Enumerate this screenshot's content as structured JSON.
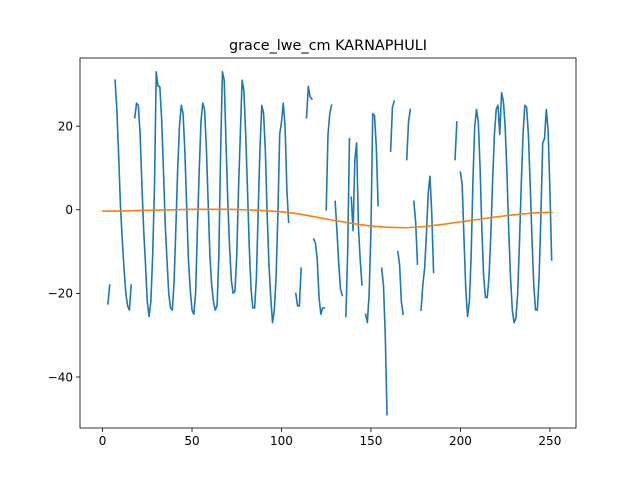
{
  "chart_data": {
    "type": "line",
    "title": "grace_lwe_cm KARNAPHULI",
    "xlabel": "",
    "ylabel": "",
    "xlim": [
      -12.6,
      264.6
    ],
    "ylim": [
      -52.2,
      36.3
    ],
    "xticks": [
      0,
      50,
      100,
      150,
      200,
      250
    ],
    "yticks": [
      -40,
      -20,
      0,
      20
    ],
    "grid": false,
    "legend": "none",
    "series": [
      {
        "color": "#1f77b4",
        "segments": [
          [
            [
              3,
              -22.5
            ],
            [
              4,
              -18
            ]
          ],
          [
            [
              7,
              31
            ],
            [
              8,
              24
            ],
            [
              9,
              13
            ],
            [
              10,
              1
            ],
            [
              11,
              -7
            ],
            [
              12,
              -14
            ],
            [
              13,
              -20
            ],
            [
              14,
              -23
            ],
            [
              15,
              -24
            ],
            [
              16,
              -18
            ]
          ],
          [
            [
              18,
              22
            ],
            [
              19,
              25.5
            ],
            [
              20,
              25
            ],
            [
              21,
              18
            ],
            [
              22,
              6
            ],
            [
              23,
              -5
            ],
            [
              24,
              -13
            ],
            [
              25,
              -22
            ],
            [
              26,
              -25.5
            ],
            [
              27,
              -22
            ],
            [
              28,
              -11
            ],
            [
              29,
              5
            ],
            [
              30,
              33
            ],
            [
              31,
              29.5
            ],
            [
              32,
              29.5
            ],
            [
              33,
              22
            ],
            [
              34,
              10
            ],
            [
              35,
              -3
            ],
            [
              36,
              -12
            ],
            [
              37,
              -20
            ],
            [
              38,
              -23.5
            ],
            [
              39,
              -24
            ],
            [
              40,
              -17
            ],
            [
              41,
              -4
            ],
            [
              42,
              10
            ],
            [
              43,
              20
            ],
            [
              44,
              25
            ],
            [
              45,
              23
            ],
            [
              46,
              14
            ],
            [
              47,
              1
            ],
            [
              48,
              -12
            ],
            [
              49,
              -19
            ],
            [
              50,
              -24
            ],
            [
              51,
              -25
            ],
            [
              52,
              -20
            ],
            [
              53,
              -5
            ],
            [
              54,
              9
            ],
            [
              55,
              21
            ],
            [
              56,
              25.5
            ],
            [
              57,
              24
            ],
            [
              58,
              15
            ],
            [
              59,
              2
            ],
            [
              60,
              -11
            ],
            [
              61,
              -18
            ],
            [
              62,
              -22
            ],
            [
              63,
              -24
            ],
            [
              64,
              -23
            ],
            [
              65,
              -11
            ],
            [
              66,
              14
            ],
            [
              67,
              33
            ],
            [
              68,
              31
            ],
            [
              69,
              16
            ],
            [
              70,
              2
            ],
            [
              71,
              -9
            ],
            [
              72,
              -17
            ],
            [
              73,
              -20
            ],
            [
              74,
              -19.5
            ],
            [
              75,
              -11
            ],
            [
              76,
              5
            ],
            [
              77,
              18
            ],
            [
              78,
              31
            ],
            [
              79,
              28.5
            ],
            [
              80,
              18
            ],
            [
              81,
              5
            ],
            [
              82,
              -9
            ],
            [
              83,
              -19
            ],
            [
              84,
              -23.5
            ],
            [
              85,
              -23.5
            ],
            [
              86,
              -16
            ],
            [
              87,
              0
            ],
            [
              88,
              15
            ],
            [
              89,
              25
            ],
            [
              90,
              23
            ],
            [
              91,
              14
            ],
            [
              92,
              -1
            ],
            [
              93,
              -13
            ],
            [
              94,
              -21
            ],
            [
              95,
              -27
            ],
            [
              96,
              -24
            ],
            [
              97,
              -16
            ],
            [
              98,
              -1
            ],
            [
              99,
              18
            ],
            [
              100,
              21
            ],
            [
              101,
              25.5
            ],
            [
              102,
              20
            ],
            [
              103,
              5
            ],
            [
              104,
              -3
            ]
          ],
          [
            [
              108,
              -20
            ],
            [
              109,
              -23
            ],
            [
              110,
              -23
            ],
            [
              111,
              -14
            ]
          ],
          [
            [
              114,
              22
            ],
            [
              115,
              29.5
            ],
            [
              116,
              27
            ],
            [
              117,
              26.5
            ]
          ],
          [
            [
              118,
              -7
            ],
            [
              119,
              -8
            ],
            [
              120,
              -12
            ],
            [
              121,
              -21
            ],
            [
              122,
              -25
            ],
            [
              123,
              -23.5
            ],
            [
              124,
              -23.5
            ]
          ],
          [
            [
              125,
              0
            ],
            [
              126,
              18
            ],
            [
              127,
              23
            ],
            [
              128,
              25
            ]
          ],
          [
            [
              130,
              2
            ],
            [
              131,
              -5
            ],
            [
              132,
              -13
            ],
            [
              133,
              -19
            ],
            [
              134,
              -20.5
            ]
          ],
          [
            [
              136,
              -25.5
            ],
            [
              137,
              -10
            ],
            [
              138,
              17
            ]
          ],
          [
            [
              139,
              3
            ],
            [
              140,
              -5
            ],
            [
              141,
              12
            ],
            [
              142,
              16
            ],
            [
              143,
              -4
            ],
            [
              144,
              -12
            ],
            [
              145,
              -18
            ]
          ],
          [
            [
              147,
              -25
            ],
            [
              148,
              -27
            ],
            [
              149,
              -20
            ],
            [
              150,
              -5
            ],
            [
              151,
              23
            ],
            [
              152,
              22.5
            ],
            [
              153,
              15
            ],
            [
              154,
              1
            ]
          ],
          [
            [
              156,
              -14
            ],
            [
              157,
              -18
            ],
            [
              158,
              -30
            ],
            [
              159,
              -49
            ]
          ],
          [
            [
              161,
              14
            ],
            [
              162,
              24.5
            ],
            [
              163,
              26
            ]
          ],
          [
            [
              165,
              -10
            ],
            [
              166,
              -13
            ],
            [
              167,
              -22
            ],
            [
              168,
              -25
            ]
          ],
          [
            [
              170,
              12
            ],
            [
              171,
              21
            ],
            [
              172,
              24
            ]
          ],
          [
            [
              174,
              2
            ],
            [
              175,
              -3
            ],
            [
              176,
              -13
            ]
          ],
          [
            [
              178,
              -24
            ],
            [
              179,
              -18
            ],
            [
              180,
              -14
            ],
            [
              181,
              -6
            ],
            [
              182,
              4
            ],
            [
              183,
              8
            ],
            [
              184,
              -1
            ],
            [
              185,
              -15
            ]
          ],
          [
            [
              197,
              12
            ],
            [
              198,
              21
            ]
          ],
          [
            [
              200,
              9
            ],
            [
              201,
              6
            ],
            [
              202,
              -7
            ],
            [
              203,
              -19
            ],
            [
              204,
              -25.5
            ],
            [
              205,
              -22
            ],
            [
              206,
              -11
            ],
            [
              207,
              7
            ],
            [
              208,
              20
            ],
            [
              209,
              24
            ],
            [
              210,
              21
            ],
            [
              211,
              10
            ],
            [
              212,
              -5
            ],
            [
              213,
              -16
            ],
            [
              214,
              -21
            ],
            [
              215,
              -21
            ],
            [
              216,
              -16
            ],
            [
              217,
              -6
            ],
            [
              218,
              7
            ],
            [
              219,
              18
            ],
            [
              220,
              24
            ],
            [
              221,
              25
            ],
            [
              222,
              18
            ],
            [
              223,
              28
            ],
            [
              224,
              26
            ],
            [
              225,
              20
            ],
            [
              226,
              9
            ],
            [
              227,
              -5
            ],
            [
              228,
              -16
            ],
            [
              229,
              -24
            ],
            [
              230,
              -27
            ],
            [
              231,
              -26
            ],
            [
              232,
              -20
            ],
            [
              233,
              -8
            ],
            [
              234,
              6
            ],
            [
              235,
              18
            ],
            [
              236,
              25
            ],
            [
              237,
              24.5
            ],
            [
              238,
              18
            ],
            [
              239,
              6
            ],
            [
              240,
              -7
            ],
            [
              241,
              -18
            ],
            [
              242,
              -24
            ],
            [
              243,
              -24
            ],
            [
              244,
              -16
            ],
            [
              245,
              -1
            ],
            [
              246,
              16
            ],
            [
              247,
              17
            ],
            [
              248,
              24
            ],
            [
              249,
              19
            ],
            [
              250,
              5
            ],
            [
              251,
              -12
            ]
          ]
        ]
      },
      {
        "color": "#ff7f0e",
        "segments": [
          [
            [
              0,
              -0.3
            ],
            [
              10,
              -0.3
            ],
            [
              20,
              -0.2
            ],
            [
              30,
              -0.1
            ],
            [
              40,
              0
            ],
            [
              50,
              0.1
            ],
            [
              60,
              0.1
            ],
            [
              70,
              0.1
            ],
            [
              80,
              0
            ],
            [
              90,
              -0.2
            ],
            [
              100,
              -0.5
            ],
            [
              110,
              -1
            ],
            [
              120,
              -1.8
            ],
            [
              130,
              -2.6
            ],
            [
              140,
              -3.3
            ],
            [
              150,
              -3.9
            ],
            [
              160,
              -4.2
            ],
            [
              170,
              -4.3
            ],
            [
              180,
              -4
            ],
            [
              190,
              -3.5
            ],
            [
              200,
              -2.9
            ],
            [
              210,
              -2.3
            ],
            [
              220,
              -1.7
            ],
            [
              230,
              -1.2
            ],
            [
              240,
              -0.8
            ],
            [
              251,
              -0.6
            ]
          ]
        ]
      }
    ]
  }
}
